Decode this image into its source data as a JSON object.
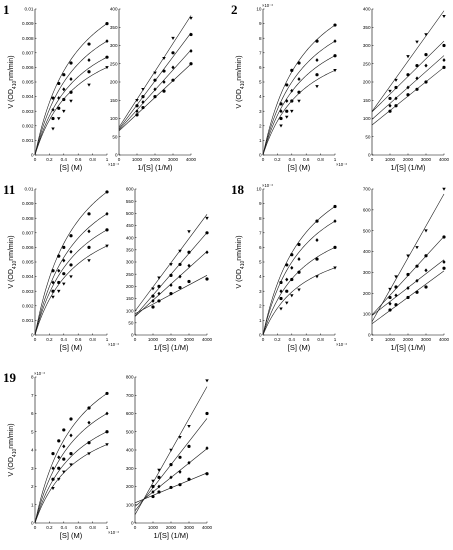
{
  "figure": {
    "panels": [
      {
        "label": "1",
        "left": {
          "ylim": [
            0,
            0.01
          ],
          "ytick_labels": [
            "0",
            "0.001",
            "0.002",
            "0.003",
            "0.004",
            "0.005",
            "0.006",
            "0.007",
            "0.008",
            "0.009",
            "0.01"
          ]
        },
        "right": {
          "ylim": [
            0,
            400
          ],
          "ytick_labels": [
            "0",
            "50",
            "100",
            "150",
            "200",
            "250",
            "300",
            "350",
            "400"
          ]
        }
      },
      {
        "label": "2",
        "left": {
          "ylim": [
            0,
            10
          ],
          "ytick_labels": [
            "0",
            "1",
            "2",
            "3",
            "4",
            "5",
            "6",
            "7",
            "8",
            "9",
            "10"
          ],
          "multiplier": "×10⁻³"
        },
        "right": {
          "ylim": [
            0,
            400
          ],
          "ytick_labels": [
            "0",
            "50",
            "100",
            "150",
            "200",
            "250",
            "300",
            "350",
            "400"
          ]
        }
      },
      {
        "label": "11",
        "left": {
          "ylim": [
            0,
            0.01
          ],
          "ytick_labels": [
            "0",
            "0.001",
            "0.002",
            "0.003",
            "0.004",
            "0.005",
            "0.006",
            "0.007",
            "0.008",
            "0.009",
            "0.01"
          ]
        },
        "right": {
          "ylim": [
            0,
            600
          ],
          "ytick_labels": [
            "0",
            "50",
            "100",
            "150",
            "200",
            "250",
            "300",
            "350",
            "400",
            "450",
            "500",
            "550",
            "600"
          ]
        }
      },
      {
        "label": "18",
        "left": {
          "ylim": [
            0,
            10
          ],
          "ytick_labels": [
            "0",
            "1",
            "2",
            "3",
            "4",
            "5",
            "6",
            "7",
            "8",
            "9",
            "10"
          ],
          "multiplier": "×10⁻³"
        },
        "right": {
          "ylim": [
            0,
            700
          ],
          "ytick_labels": [
            "0",
            "100",
            "200",
            "300",
            "400",
            "500",
            "600",
            "700"
          ]
        }
      },
      {
        "label": "19",
        "left": {
          "ylim": [
            0,
            8
          ],
          "ytick_labels": [
            "0",
            "1",
            "2",
            "3",
            "4",
            "5",
            "6",
            "7",
            "8"
          ],
          "multiplier": "×10⁻³"
        },
        "right": {
          "ylim": [
            0,
            800
          ],
          "ytick_labels": [
            "0",
            "100",
            "200",
            "300",
            "400",
            "500",
            "600",
            "700",
            "800"
          ]
        }
      }
    ],
    "left_xtick_labels": [
      "0",
      "0.2",
      "0.4",
      "0.6",
      "0.8",
      "1"
    ],
    "left_x_multiplier": "×10⁻³",
    "right_xtick_labels": [
      "0",
      "1000",
      "2000",
      "3000",
      "4000"
    ],
    "left_xlabel": "[S] (M)",
    "right_xlabel": "1/[S] (1/M)",
    "ylabel_prefix": "V (OD",
    "ylabel_sub": "410",
    "ylabel_suffix": "nm/min)"
  },
  "chart_data": [
    {
      "panel": "1",
      "type": "scatter",
      "xlabel": "[S] (M)",
      "ylabel": "V (OD410nm/min)",
      "xlim": [
        0,
        0.001
      ],
      "ylim": [
        0,
        0.01
      ],
      "x": [
        0.00025,
        0.00033,
        0.0004,
        0.0005,
        0.00075,
        0.001
      ],
      "series": [
        {
          "marker": "circle",
          "values": [
            0.0039,
            0.0049,
            0.0055,
            0.0063,
            0.0076,
            0.009
          ]
        },
        {
          "marker": "diamond",
          "values": [
            0.0031,
            0.0039,
            0.0045,
            0.0052,
            0.0065,
            0.0078
          ]
        },
        {
          "marker": "circle",
          "values": [
            0.0025,
            0.0032,
            0.0038,
            0.0043,
            0.0057,
            0.0067
          ]
        },
        {
          "marker": "triangle-down",
          "values": [
            0.0018,
            0.0025,
            0.003,
            0.0037,
            0.0048,
            0.006
          ]
        }
      ]
    },
    {
      "panel": "1",
      "type": "scatter",
      "xlabel": "1/[S] (1/M)",
      "ylabel": "V (OD410nm/min)",
      "xlim": [
        0,
        4000
      ],
      "ylim": [
        0,
        400
      ],
      "x": [
        1000,
        1333,
        2000,
        2500,
        3000,
        4000
      ],
      "series": [
        {
          "marker": "triangle-down",
          "values": [
            150,
            180,
            225,
            265,
            320,
            375
          ]
        },
        {
          "marker": "circle",
          "values": [
            135,
            160,
            205,
            230,
            280,
            330
          ]
        },
        {
          "marker": "diamond",
          "values": [
            120,
            145,
            180,
            200,
            240,
            285
          ]
        },
        {
          "marker": "circle",
          "values": [
            110,
            130,
            160,
            175,
            205,
            250
          ]
        }
      ]
    },
    {
      "panel": "2",
      "type": "scatter",
      "xlabel": "[S] (M)",
      "ylabel": "V (OD410nm/min)",
      "xlim": [
        0,
        0.001
      ],
      "ylim": [
        0,
        0.01
      ],
      "x": [
        0.00025,
        0.00033,
        0.0004,
        0.0005,
        0.00075,
        0.001
      ],
      "series": [
        {
          "marker": "circle",
          "values": [
            0.0035,
            0.0048,
            0.0058,
            0.0063,
            0.0078,
            0.0089
          ]
        },
        {
          "marker": "diamond",
          "values": [
            0.003,
            0.0037,
            0.0044,
            0.0052,
            0.0065,
            0.0078
          ]
        },
        {
          "marker": "circle",
          "values": [
            0.0025,
            0.003,
            0.0037,
            0.0043,
            0.0055,
            0.0068
          ]
        },
        {
          "marker": "triangle-down",
          "values": [
            0.002,
            0.0026,
            0.003,
            0.0037,
            0.0047,
            0.0058
          ]
        }
      ]
    },
    {
      "panel": "2",
      "type": "scatter",
      "xlabel": "1/[S] (1/M)",
      "ylabel": "V (OD410nm/min)",
      "xlim": [
        0,
        4000
      ],
      "ylim": [
        0,
        400
      ],
      "x": [
        1000,
        1333,
        2000,
        2500,
        3000,
        4000
      ],
      "series": [
        {
          "marker": "triangle-down",
          "values": [
            175,
            205,
            270,
            310,
            330,
            380
          ]
        },
        {
          "marker": "circle",
          "values": [
            155,
            185,
            220,
            245,
            275,
            300
          ]
        },
        {
          "marker": "diamond",
          "values": [
            135,
            155,
            185,
            210,
            245,
            260
          ]
        },
        {
          "marker": "circle",
          "values": [
            120,
            135,
            165,
            180,
            200,
            240
          ]
        }
      ]
    },
    {
      "panel": "11",
      "type": "scatter",
      "xlabel": "[S] (M)",
      "ylabel": "V (OD410nm/min)",
      "xlim": [
        0,
        0.001
      ],
      "ylim": [
        0,
        0.01
      ],
      "x": [
        0.00025,
        0.00033,
        0.0004,
        0.0005,
        0.00075,
        0.001
      ],
      "series": [
        {
          "marker": "circle",
          "values": [
            0.0044,
            0.0054,
            0.006,
            0.0068,
            0.0083,
            0.0098
          ]
        },
        {
          "marker": "diamond",
          "values": [
            0.0036,
            0.0044,
            0.0051,
            0.0057,
            0.0071,
            0.0083
          ]
        },
        {
          "marker": "circle",
          "values": [
            0.003,
            0.0036,
            0.0042,
            0.0048,
            0.006,
            0.0072
          ]
        },
        {
          "marker": "triangle-down",
          "values": [
            0.0026,
            0.003,
            0.0035,
            0.004,
            0.0051,
            0.0061
          ]
        }
      ]
    },
    {
      "panel": "11",
      "type": "scatter",
      "xlabel": "1/[S] (1/M)",
      "ylabel": "V (OD410nm/min)",
      "xlim": [
        0,
        4000
      ],
      "ylim": [
        0,
        600
      ],
      "x": [
        1000,
        1333,
        2000,
        2500,
        3000,
        4000
      ],
      "series": [
        {
          "marker": "triangle-down",
          "values": [
            190,
            235,
            290,
            345,
            425,
            480
          ]
        },
        {
          "marker": "circle",
          "values": [
            160,
            200,
            245,
            290,
            340,
            420
          ]
        },
        {
          "marker": "diamond",
          "values": [
            140,
            170,
            205,
            240,
            285,
            340
          ]
        },
        {
          "marker": "circle",
          "values": [
            115,
            140,
            170,
            195,
            220,
            230
          ]
        }
      ]
    },
    {
      "panel": "18",
      "type": "scatter",
      "xlabel": "[S] (M)",
      "ylabel": "V (OD410nm/min)",
      "xlim": [
        0,
        0.001
      ],
      "ylim": [
        0,
        0.01
      ],
      "x": [
        0.00025,
        0.00033,
        0.0004,
        0.0005,
        0.00075,
        0.001
      ],
      "series": [
        {
          "marker": "circle",
          "values": [
            0.0036,
            0.0048,
            0.0055,
            0.0062,
            0.0078,
            0.0088
          ]
        },
        {
          "marker": "diamond",
          "values": [
            0.003,
            0.0038,
            0.0046,
            0.0052,
            0.0065,
            0.0078
          ]
        },
        {
          "marker": "circle",
          "values": [
            0.0025,
            0.003,
            0.0038,
            0.0043,
            0.0052,
            0.006
          ]
        },
        {
          "marker": "triangle-down",
          "values": [
            0.0018,
            0.0022,
            0.0027,
            0.0031,
            0.004,
            0.0046
          ]
        }
      ]
    },
    {
      "panel": "18",
      "type": "scatter",
      "xlabel": "1/[S] (1/M)",
      "ylabel": "V (OD410nm/min)",
      "xlim": [
        0,
        4000
      ],
      "ylim": [
        0,
        700
      ],
      "x": [
        1000,
        1333,
        2000,
        2500,
        3000,
        4000
      ],
      "series": [
        {
          "marker": "triangle-down",
          "values": [
            220,
            280,
            380,
            420,
            500,
            700
          ]
        },
        {
          "marker": "circle",
          "values": [
            180,
            230,
            290,
            330,
            380,
            470
          ]
        },
        {
          "marker": "diamond",
          "values": [
            150,
            190,
            225,
            260,
            310,
            350
          ]
        },
        {
          "marker": "circle",
          "values": [
            120,
            145,
            180,
            205,
            230,
            320
          ]
        }
      ]
    },
    {
      "panel": "19",
      "type": "scatter",
      "xlabel": "[S] (M)",
      "ylabel": "V (OD410nm/min)",
      "xlim": [
        0,
        0.001
      ],
      "ylim": [
        0,
        0.008
      ],
      "x": [
        0.00025,
        0.00033,
        0.0004,
        0.0005,
        0.00075,
        0.001
      ],
      "series": [
        {
          "marker": "circle",
          "values": [
            0.0038,
            0.0045,
            0.0051,
            0.0057,
            0.0063,
            0.0071
          ]
        },
        {
          "marker": "diamond",
          "values": [
            0.003,
            0.0036,
            0.0042,
            0.0048,
            0.0055,
            0.006
          ]
        },
        {
          "marker": "circle",
          "values": [
            0.0024,
            0.003,
            0.0035,
            0.0038,
            0.0044,
            0.005
          ]
        },
        {
          "marker": "triangle-down",
          "values": [
            0.0019,
            0.0024,
            0.0028,
            0.0032,
            0.0038,
            0.0043
          ]
        }
      ]
    },
    {
      "panel": "19",
      "type": "scatter",
      "xlabel": "1/[S] (1/M)",
      "ylabel": "V (OD410nm/min)",
      "xlim": [
        0,
        4000
      ],
      "ylim": [
        0,
        800
      ],
      "x": [
        1000,
        1333,
        2000,
        2500,
        3000,
        4000
      ],
      "series": [
        {
          "marker": "triangle-down",
          "values": [
            230,
            290,
            400,
            470,
            530,
            780
          ]
        },
        {
          "marker": "circle",
          "values": [
            200,
            250,
            320,
            360,
            420,
            600
          ]
        },
        {
          "marker": "diamond",
          "values": [
            170,
            200,
            250,
            280,
            330,
            410
          ]
        },
        {
          "marker": "circle",
          "values": [
            145,
            170,
            195,
            210,
            240,
            270
          ]
        }
      ]
    }
  ]
}
